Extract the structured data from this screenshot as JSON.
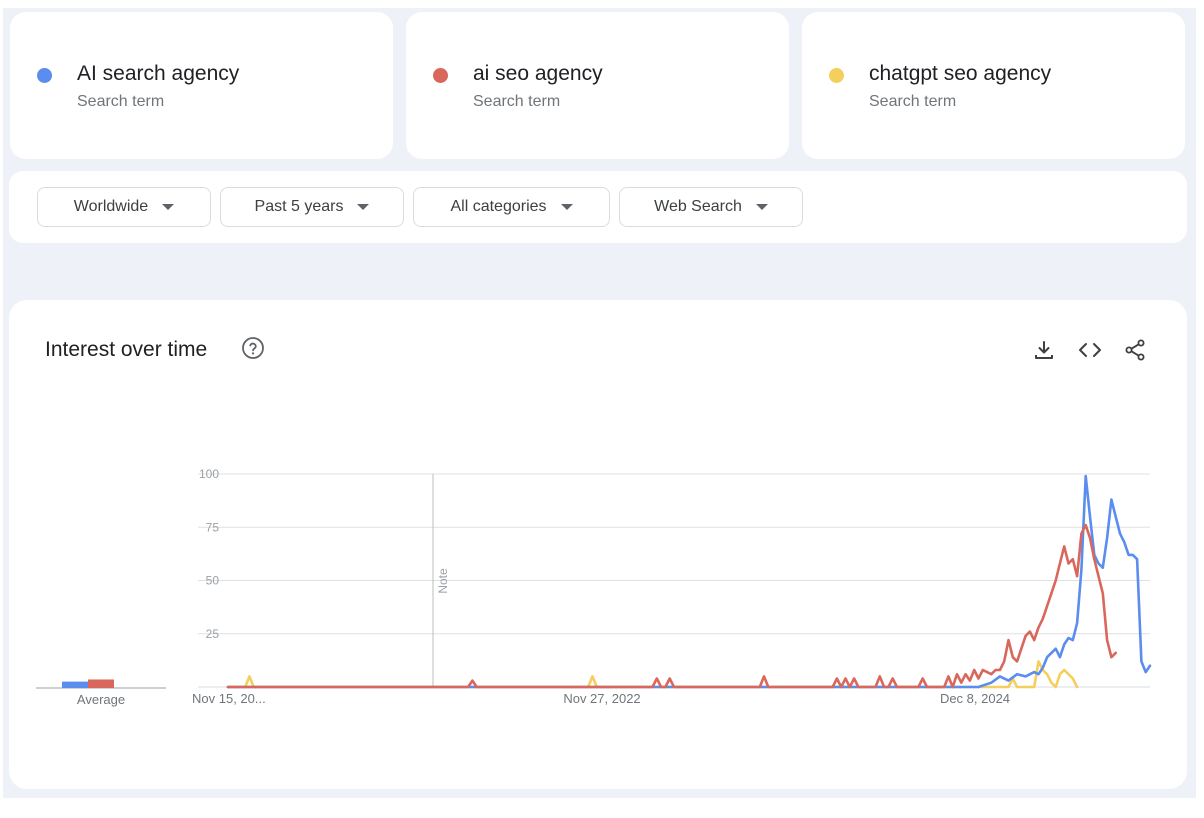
{
  "terms": [
    {
      "name": "AI search agency",
      "subtitle": "Search term",
      "color": "#5b8def"
    },
    {
      "name": "ai seo agency",
      "subtitle": "Search term",
      "color": "#d9675c"
    },
    {
      "name": "chatgpt seo agency",
      "subtitle": "Search term",
      "color": "#f5cf5d"
    }
  ],
  "filters": {
    "region": "Worldwide",
    "period": "Past 5 years",
    "category": "All categories",
    "search_type": "Web Search"
  },
  "panel": {
    "title": "Interest over time",
    "icons": [
      "help-icon",
      "download-icon",
      "embed-code-icon",
      "share-icon"
    ]
  },
  "chart_data": {
    "type": "line",
    "title": "Interest over time",
    "ylim": [
      0,
      100
    ],
    "y_ticks": [
      25,
      50,
      75,
      100
    ],
    "x_ticks": [
      "Nov 15, 20...",
      "Nov 27, 2022",
      "Dec 8, 2024"
    ],
    "note_label": "Note",
    "average_label": "Average",
    "average_values": {
      "AI search agency": 3,
      "ai seo agency": 4,
      "chatgpt seo agency": 0
    },
    "grid": true,
    "series": [
      {
        "name": "AI search agency",
        "color": "#5b8def",
        "points": [
          [
            0,
            0
          ],
          [
            175,
            0
          ],
          [
            178,
            2
          ],
          [
            180,
            5
          ],
          [
            182,
            3
          ],
          [
            184,
            6
          ],
          [
            186,
            5
          ],
          [
            188,
            7
          ],
          [
            189,
            6
          ],
          [
            190,
            9
          ],
          [
            191,
            14
          ],
          [
            192,
            16
          ],
          [
            193,
            18
          ],
          [
            194,
            14
          ],
          [
            195,
            20
          ],
          [
            196,
            23
          ],
          [
            197,
            22
          ],
          [
            198,
            30
          ],
          [
            199,
            55
          ],
          [
            200,
            99
          ],
          [
            201,
            80
          ],
          [
            202,
            62
          ],
          [
            203,
            58
          ],
          [
            204,
            56
          ],
          [
            205,
            70
          ],
          [
            206,
            88
          ],
          [
            207,
            80
          ],
          [
            208,
            72
          ],
          [
            209,
            68
          ],
          [
            210,
            62
          ],
          [
            211,
            62
          ],
          [
            212,
            60
          ],
          [
            213,
            12
          ],
          [
            214,
            7
          ],
          [
            215,
            10
          ]
        ]
      },
      {
        "name": "ai seo agency",
        "color": "#d9675c",
        "points": [
          [
            0,
            0
          ],
          [
            56,
            0
          ],
          [
            57,
            3
          ],
          [
            58,
            0
          ],
          [
            99,
            0
          ],
          [
            100,
            4
          ],
          [
            101,
            0
          ],
          [
            102,
            0
          ],
          [
            103,
            4
          ],
          [
            104,
            0
          ],
          [
            124,
            0
          ],
          [
            125,
            5
          ],
          [
            126,
            0
          ],
          [
            141,
            0
          ],
          [
            142,
            4
          ],
          [
            143,
            0
          ],
          [
            144,
            4
          ],
          [
            145,
            0
          ],
          [
            146,
            4
          ],
          [
            147,
            0
          ],
          [
            151,
            0
          ],
          [
            152,
            5
          ],
          [
            153,
            0
          ],
          [
            154,
            0
          ],
          [
            155,
            4
          ],
          [
            156,
            0
          ],
          [
            161,
            0
          ],
          [
            162,
            4
          ],
          [
            163,
            0
          ],
          [
            167,
            0
          ],
          [
            168,
            5
          ],
          [
            169,
            0
          ],
          [
            170,
            6
          ],
          [
            171,
            2
          ],
          [
            172,
            6
          ],
          [
            173,
            3
          ],
          [
            174,
            8
          ],
          [
            175,
            4
          ],
          [
            176,
            8
          ],
          [
            177,
            7
          ],
          [
            178,
            6
          ],
          [
            179,
            8
          ],
          [
            180,
            8
          ],
          [
            181,
            12
          ],
          [
            182,
            22
          ],
          [
            183,
            14
          ],
          [
            184,
            12
          ],
          [
            185,
            18
          ],
          [
            186,
            24
          ],
          [
            187,
            26
          ],
          [
            188,
            22
          ],
          [
            189,
            28
          ],
          [
            190,
            32
          ],
          [
            191,
            38
          ],
          [
            192,
            44
          ],
          [
            193,
            50
          ],
          [
            194,
            58
          ],
          [
            195,
            66
          ],
          [
            196,
            58
          ],
          [
            197,
            60
          ],
          [
            198,
            52
          ],
          [
            199,
            72
          ],
          [
            200,
            76
          ],
          [
            201,
            70
          ],
          [
            202,
            60
          ],
          [
            203,
            52
          ],
          [
            204,
            44
          ],
          [
            205,
            22
          ],
          [
            206,
            14
          ],
          [
            207,
            16
          ]
        ]
      },
      {
        "name": "chatgpt seo agency",
        "color": "#f5cf5d",
        "points": [
          [
            0,
            0
          ],
          [
            4,
            0
          ],
          [
            5,
            5
          ],
          [
            6,
            0
          ],
          [
            84,
            0
          ],
          [
            85,
            5
          ],
          [
            86,
            0
          ],
          [
            182,
            0
          ],
          [
            183,
            4
          ],
          [
            184,
            0
          ],
          [
            188,
            0
          ],
          [
            189,
            12
          ],
          [
            190,
            8
          ],
          [
            191,
            6
          ],
          [
            192,
            2
          ],
          [
            193,
            0
          ],
          [
            194,
            6
          ],
          [
            195,
            8
          ],
          [
            196,
            6
          ],
          [
            197,
            4
          ],
          [
            198,
            0
          ]
        ]
      }
    ]
  }
}
